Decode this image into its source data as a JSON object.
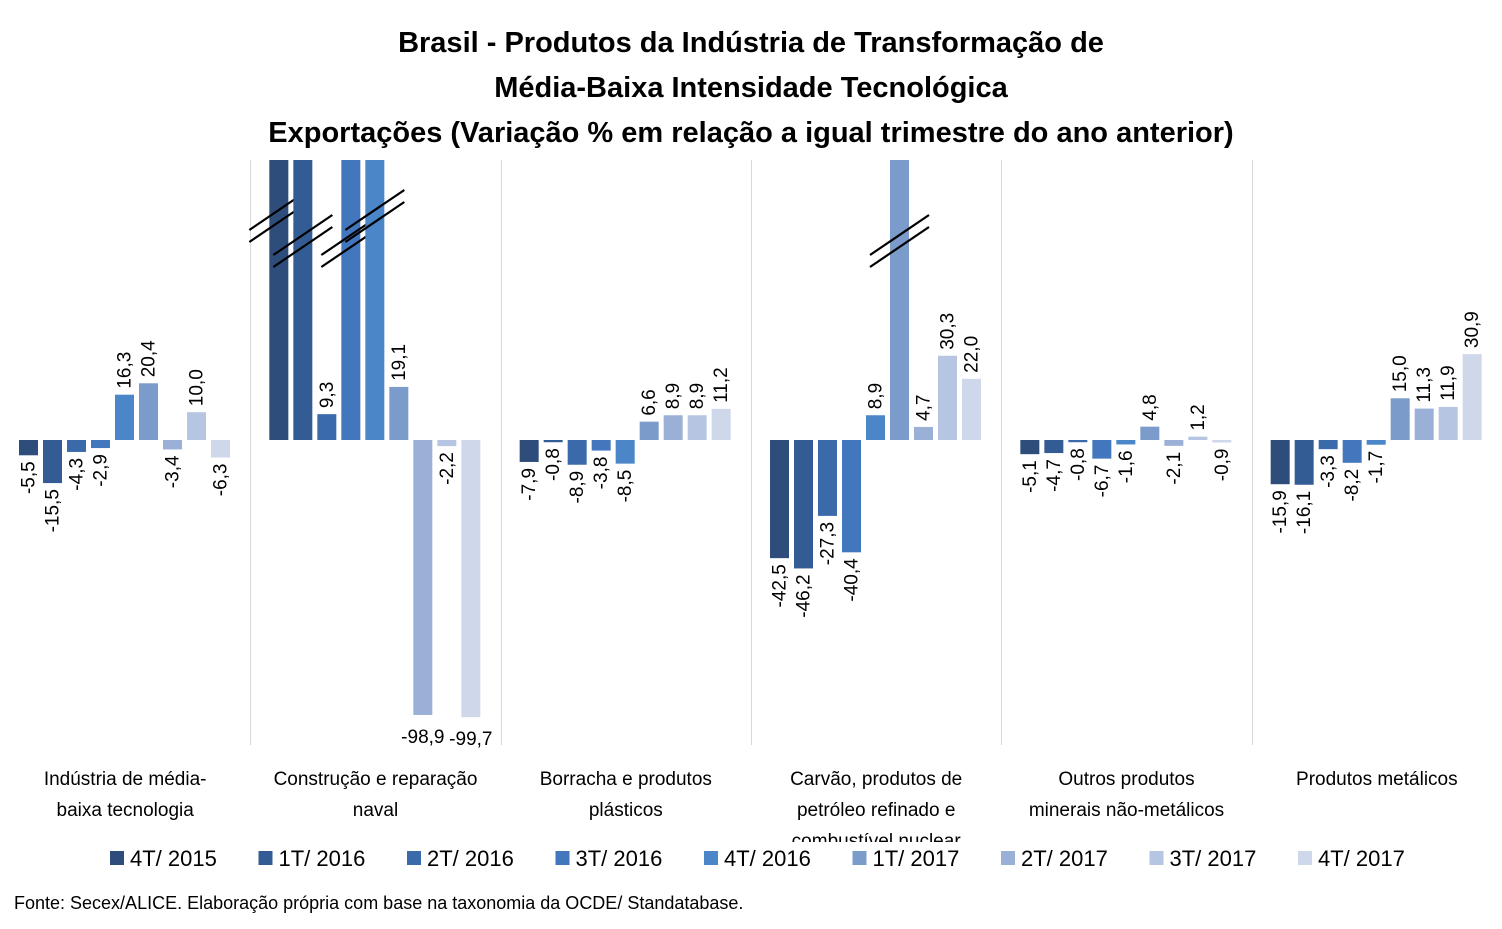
{
  "chart_data": {
    "type": "bar",
    "title": [
      "Brasil - Produtos da Indústria de Transformação de",
      "Média-Baixa Intensidade Tecnológica",
      "Exportações (Variação % em relação a igual trimestre do ano anterior)"
    ],
    "categories": [
      [
        "Indústria de média-",
        "baixa tecnologia"
      ],
      [
        "Construção e reparação",
        "naval"
      ],
      [
        "Borracha e produtos",
        "plásticos"
      ],
      [
        "Carvão, produtos de",
        "petróleo refinado e",
        "combustível nuclear"
      ],
      [
        "Outros produtos",
        "minerais não-metálicos"
      ],
      [
        "Produtos metálicos"
      ]
    ],
    "ylim": [
      -100,
      100
    ],
    "grid": false,
    "legend_position": "bottom",
    "series": [
      {
        "name": "4T/ 2015",
        "color": "#2e4d7b"
      },
      {
        "name": "1T/ 2016",
        "color": "#345c94"
      },
      {
        "name": "2T/ 2016",
        "color": "#3b6aab"
      },
      {
        "name": "3T/ 2016",
        "color": "#4276bd"
      },
      {
        "name": "4T/ 2016",
        "color": "#4a86c8"
      },
      {
        "name": "1T/ 2017",
        "color": "#7b9bcb"
      },
      {
        "name": "2T/ 2017",
        "color": "#9bb0d7"
      },
      {
        "name": "3T/ 2017",
        "color": "#b5c5e2"
      },
      {
        "name": "4T/ 2017",
        "color": "#cfd8ea"
      }
    ],
    "values": [
      [
        -5.5,
        -15.5,
        -4.3,
        -2.9,
        16.3,
        20.4,
        -3.4,
        10.0,
        -6.3
      ],
      [
        null,
        null,
        9.3,
        null,
        null,
        19.1,
        -98.9,
        -2.2,
        -99.7
      ],
      [
        -7.9,
        -0.8,
        -8.9,
        -3.8,
        -8.5,
        6.6,
        8.9,
        8.9,
        11.2
      ],
      [
        -42.5,
        -46.2,
        -27.3,
        -40.4,
        8.9,
        null,
        4.7,
        30.3,
        22.0
      ],
      [
        -5.1,
        -4.7,
        -0.8,
        -6.7,
        -1.6,
        4.8,
        -2.1,
        1.2,
        -0.9
      ],
      [
        -15.9,
        -16.1,
        -3.3,
        -8.2,
        -1.7,
        15.0,
        11.3,
        11.9,
        30.9
      ]
    ],
    "labels": [
      [
        "-5,5",
        "-15,5",
        "-4,3",
        "-2,9",
        "16,3",
        "20,4",
        "-3,4",
        "10,0",
        "-6,3"
      ],
      [
        "",
        "",
        "9,3",
        "",
        "",
        "19,1",
        "-98,9",
        "-2,2",
        "-99,7"
      ],
      [
        "-7,9",
        "-0,8",
        "-8,9",
        "-3,8",
        "-8,5",
        "6,6",
        "8,9",
        "8,9",
        "11,2"
      ],
      [
        "-42,5",
        "-46,2",
        "-27,3",
        "-40,4",
        "8,9",
        "",
        "4,7",
        "30,3",
        "22,0"
      ],
      [
        "-5,1",
        "-4,7",
        "-0,8",
        "-6,7",
        "-1,6",
        "4,8",
        "-2,1",
        "1,2",
        "-0,9"
      ],
      [
        "-15,9",
        "-16,1",
        "-3,3",
        "-8,2",
        "-1,7",
        "15,0",
        "11,3",
        "11,9",
        "30,9"
      ]
    ],
    "off_scale_bars": [
      [
        1,
        0
      ],
      [
        1,
        1
      ],
      [
        1,
        3
      ],
      [
        1,
        4
      ],
      [
        3,
        5
      ]
    ],
    "label_style": "rotated",
    "source": "Fonte: Secex/ALICE. Elaboração própria com base na taxonomia da OCDE/ Standatabase."
  }
}
